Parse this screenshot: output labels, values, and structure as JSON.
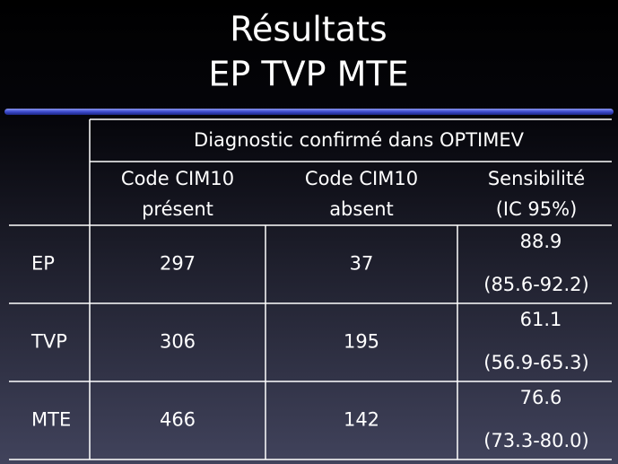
{
  "title": [
    "Résultats",
    "EP TVP MTE"
  ],
  "table": {
    "group_header": "Diagnostic confirmé dans OPTIMEV",
    "columns": [
      [
        "Code CIM10",
        "présent"
      ],
      [
        "Code CIM10",
        "absent"
      ],
      [
        "Sensibilité",
        "(IC 95%)"
      ]
    ],
    "rows": [
      [
        "EP",
        297,
        37,
        88.9,
        "(85.6-92.2)"
      ],
      [
        "TVP",
        306,
        195,
        61.1,
        "(56.9-65.3)"
      ],
      [
        "MTE",
        466,
        142,
        76.6,
        "(73.3-80.0)"
      ]
    ]
  }
}
